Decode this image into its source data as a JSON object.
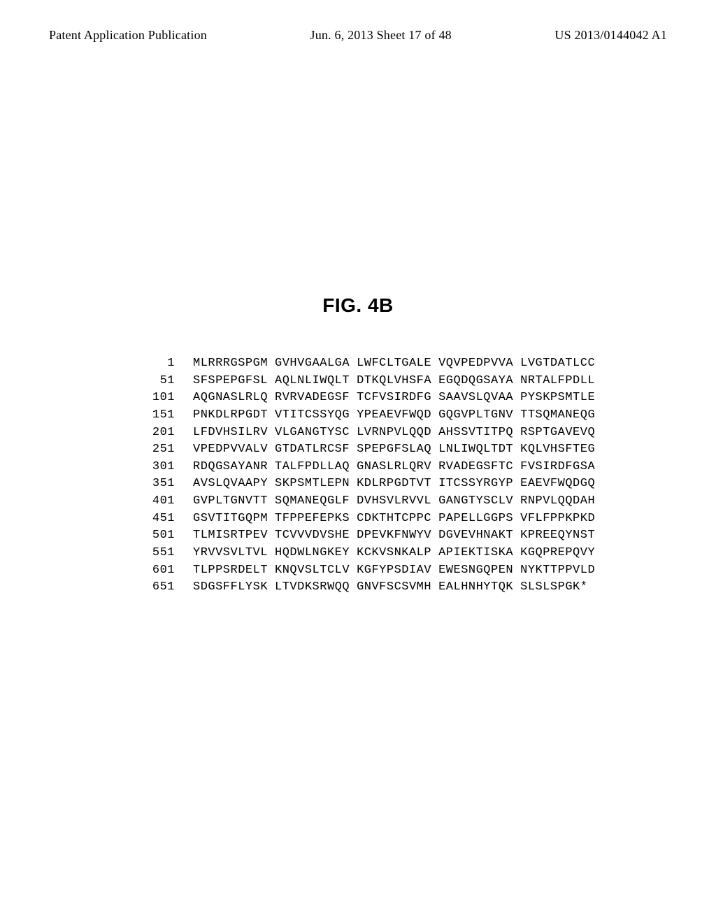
{
  "header": {
    "left": "Patent Application Publication",
    "center": "Jun. 6, 2013  Sheet 17 of 48",
    "right": "US 2013/0144042 A1"
  },
  "figure_label": "FIG. 4B",
  "sequence": {
    "font_family": "Courier New",
    "font_size_pt": 12,
    "block_gap_spaces": 1,
    "rows": [
      {
        "num": 1,
        "blocks": [
          "MLRRRGSPGM",
          "GVHVGAALGA",
          "LWFCLTGALE",
          "VQVPEDPVVA",
          "LVGTDATLCC"
        ]
      },
      {
        "num": 51,
        "blocks": [
          "SFSPEPGFSL",
          "AQLNLIWQLT",
          "DTKQLVHSFA",
          "EGQDQGSAYA",
          "NRTALFPDLL"
        ]
      },
      {
        "num": 101,
        "blocks": [
          "AQGNASLRLQ",
          "RVRVADEGSF",
          "TCFVSIRDFG",
          "SAAVSLQVAA",
          "PYSKPSMTLE"
        ]
      },
      {
        "num": 151,
        "blocks": [
          "PNKDLRPGDT",
          "VTITCSSYQG",
          "YPEAEVFWQD",
          "GQGVPLTGNV",
          "TTSQMANEQG"
        ]
      },
      {
        "num": 201,
        "blocks": [
          "LFDVHSILRV",
          "VLGANGTYSC",
          "LVRNPVLQQD",
          "AHSSVTITPQ",
          "RSPTGAVEVQ"
        ]
      },
      {
        "num": 251,
        "blocks": [
          "VPEDPVVALV",
          "GTDATLRCSF",
          "SPEPGFSLAQ",
          "LNLIWQLTDT",
          "KQLVHSFTEG"
        ]
      },
      {
        "num": 301,
        "blocks": [
          "RDQGSAYANR",
          "TALFPDLLAQ",
          "GNASLRLQRV",
          "RVADEGSFTC",
          "FVSIRDFGSA"
        ]
      },
      {
        "num": 351,
        "blocks": [
          "AVSLQVAAPY",
          "SKPSMTLEPN",
          "KDLRPGDTVT",
          "ITCSSYRGYP",
          "EAEVFWQDGQ"
        ]
      },
      {
        "num": 401,
        "blocks": [
          "GVPLTGNVTT",
          "SQMANEQGLF",
          "DVHSVLRVVL",
          "GANGTYSCLV",
          "RNPVLQQDAH"
        ]
      },
      {
        "num": 451,
        "blocks": [
          "GSVTITGQPM",
          "TFPPEFEPKS",
          "CDKTHTCPPC",
          "PAPELLGGPS",
          "VFLFPPKPKD"
        ]
      },
      {
        "num": 501,
        "blocks": [
          "TLMISRTPEV",
          "TCVVVDVSHE",
          "DPEVKFNWYV",
          "DGVEVHNAKT",
          "KPREEQYNST"
        ]
      },
      {
        "num": 551,
        "blocks": [
          "YRVVSVLTVL",
          "HQDWLNGKEY",
          "KCKVSNKALP",
          "APIEKTISKA",
          "KGQPREPQVY"
        ]
      },
      {
        "num": 601,
        "blocks": [
          "TLPPSRDELT",
          "KNQVSLTCLV",
          "KGFYPSDIAV",
          "EWESNGQPEN",
          "NYKTTPPVLD"
        ]
      },
      {
        "num": 651,
        "blocks": [
          "SDGSFFLYSK",
          "LTVDKSRWQQ",
          "GNVFSCSVMH",
          "EALHNHYTQK",
          "SLSLSPGK*"
        ]
      }
    ]
  },
  "style": {
    "background_color": "#ffffff",
    "text_color": "#000000",
    "header_font": "Times New Roman",
    "header_fontsize_pt": 13,
    "figure_label_font": "Arial",
    "figure_label_fontsize_pt": 20,
    "figure_label_weight": "bold"
  }
}
